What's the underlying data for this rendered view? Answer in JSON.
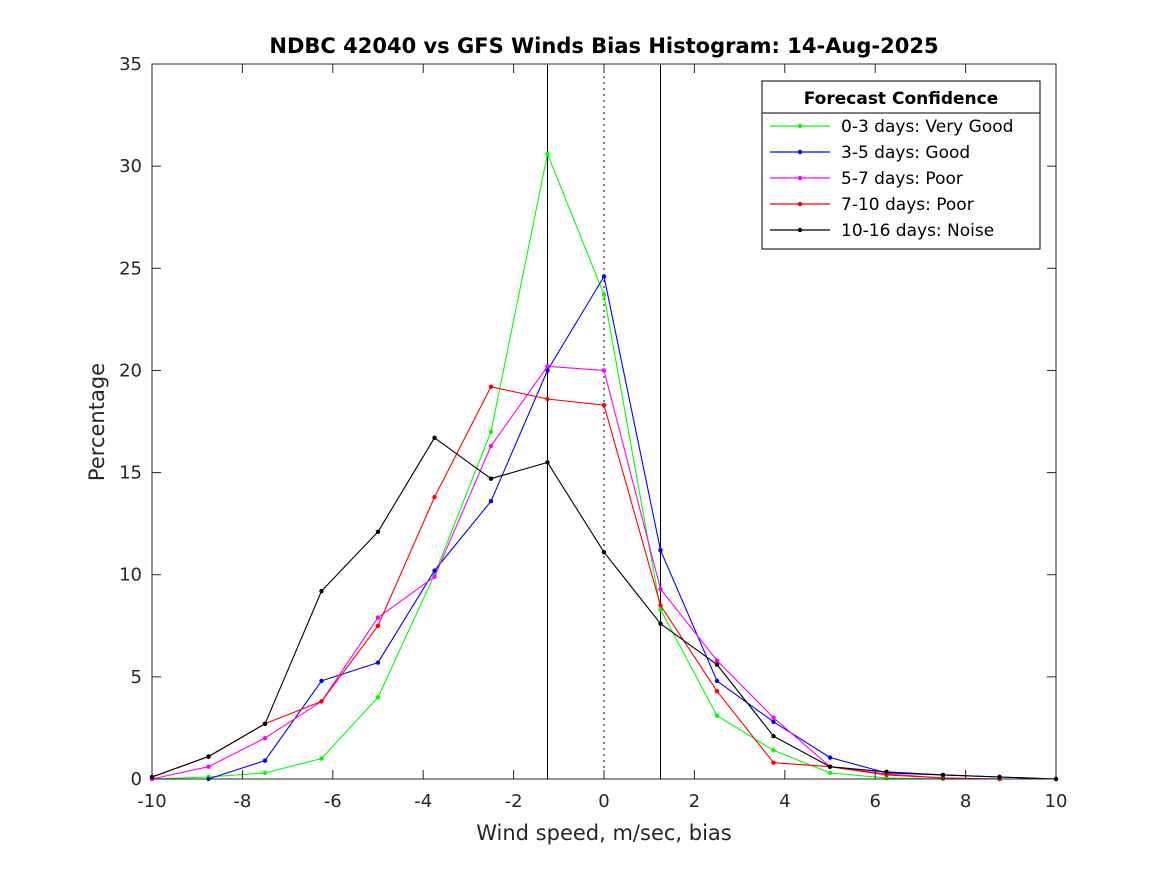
{
  "chart_data": {
    "type": "line",
    "title": "NDBC 42040 vs GFS Winds Bias Histogram: 14-Aug-2025",
    "xlabel": "Wind speed, m/sec, bias",
    "ylabel": "Percentage",
    "xlim": [
      -10,
      10
    ],
    "ylim": [
      0,
      35
    ],
    "xticks": [
      -10,
      -8,
      -6,
      -4,
      -2,
      0,
      2,
      4,
      6,
      8,
      10
    ],
    "yticks": [
      0,
      5,
      10,
      15,
      20,
      25,
      30,
      35
    ],
    "grid": false,
    "legend": {
      "title": "Forecast Confidence",
      "placement": "top-right"
    },
    "reference_lines": {
      "solid_x": [
        -1.25,
        1.25
      ],
      "dotted_x": [
        0
      ]
    },
    "x": [
      -10,
      -8.75,
      -7.5,
      -6.25,
      -5,
      -3.75,
      -2.5,
      -1.25,
      0,
      1.25,
      2.5,
      3.75,
      5,
      6.25,
      7.5,
      8.75,
      10
    ],
    "series": [
      {
        "name": "0-3 days: Very Good",
        "color": "#00ff00",
        "values": [
          0,
          0.1,
          0.3,
          1.0,
          4.0,
          10.0,
          17.0,
          30.6,
          23.7,
          8.3,
          3.1,
          1.4,
          0.3,
          0.05,
          0,
          0,
          0
        ]
      },
      {
        "name": "3-5 days: Good",
        "color": "#0000ff",
        "values": [
          0,
          0,
          0.9,
          4.8,
          5.7,
          10.2,
          13.6,
          20.0,
          24.6,
          11.2,
          4.8,
          2.8,
          1.05,
          0.3,
          0.2,
          0.1,
          0
        ]
      },
      {
        "name": "5-7 days: Poor",
        "color": "#ff00ff",
        "values": [
          0,
          0.6,
          2.0,
          3.8,
          7.9,
          9.9,
          16.3,
          20.2,
          20.0,
          9.3,
          5.8,
          3.0,
          0.6,
          0.25,
          0.05,
          0,
          0
        ]
      },
      {
        "name": "7-10 days: Poor",
        "color": "#ff0000",
        "values": [
          0.1,
          1.1,
          2.7,
          3.8,
          7.5,
          13.8,
          19.2,
          18.6,
          18.3,
          8.5,
          4.3,
          0.8,
          0.6,
          0.2,
          0.05,
          0,
          0
        ]
      },
      {
        "name": "10-16 days: Noise",
        "color": "#000000",
        "values": [
          0.1,
          1.1,
          2.7,
          9.2,
          12.1,
          16.7,
          14.7,
          15.5,
          11.1,
          7.6,
          5.6,
          2.1,
          0.6,
          0.35,
          0.2,
          0.1,
          0
        ]
      }
    ]
  }
}
